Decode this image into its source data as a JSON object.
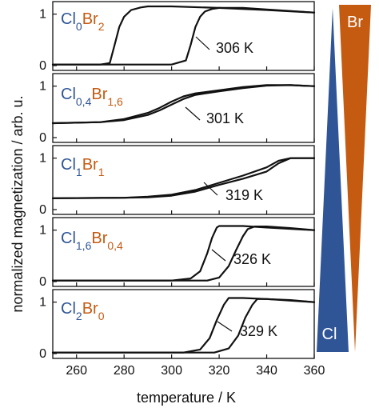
{
  "colors": {
    "cl": "#2f5597",
    "br": "#c55a11",
    "line": "#111111"
  },
  "chart_data": {
    "type": "line",
    "xlabel": "temperature / K",
    "ylabel": "normalized magnetization / arb. u.",
    "xlim": [
      250,
      360
    ],
    "xticks": [
      "260",
      "280",
      "300",
      "320",
      "340",
      "360"
    ],
    "ylim": [
      0,
      1.15
    ],
    "yticks": [
      "0",
      "1"
    ],
    "grid": false,
    "panels": [
      {
        "label": [
          {
            "text": "Cl",
            "el": "cl"
          },
          {
            "text": "0",
            "el": "cl",
            "sub": true
          },
          {
            "text": "Br",
            "el": "br"
          },
          {
            "text": "2",
            "el": "br",
            "sub": true
          }
        ],
        "annotation": "306 K",
        "cooling": {
          "x": [
            250,
            270,
            274,
            276,
            278,
            280,
            283,
            287,
            290,
            300,
            320,
            340,
            360
          ],
          "y": [
            0.02,
            0.02,
            0.05,
            0.4,
            0.75,
            0.95,
            1.08,
            1.13,
            1.15,
            1.15,
            1.12,
            1.08,
            1.03
          ]
        },
        "heating": {
          "x": [
            250,
            300,
            306,
            308,
            310,
            312,
            314,
            317,
            320,
            330,
            340,
            360
          ],
          "y": [
            0.02,
            0.02,
            0.1,
            0.4,
            0.75,
            0.95,
            1.05,
            1.1,
            1.12,
            1.12,
            1.09,
            1.03
          ]
        }
      },
      {
        "label": [
          {
            "text": "Cl",
            "el": "cl"
          },
          {
            "text": "0,4",
            "el": "cl",
            "sub": true
          },
          {
            "text": "Br",
            "el": "br"
          },
          {
            "text": "1,6",
            "el": "br",
            "sub": true
          }
        ],
        "annotation": "301 K",
        "cooling": {
          "x": [
            250,
            270,
            280,
            290,
            295,
            300,
            305,
            310,
            320,
            330,
            340,
            350,
            360
          ],
          "y": [
            0.28,
            0.3,
            0.36,
            0.48,
            0.58,
            0.7,
            0.8,
            0.86,
            0.92,
            0.98,
            1.02,
            1.02,
            1.0
          ]
        },
        "heating": {
          "x": [
            250,
            270,
            280,
            290,
            295,
            300,
            305,
            310,
            320,
            330,
            340,
            350,
            360
          ],
          "y": [
            0.28,
            0.3,
            0.34,
            0.44,
            0.53,
            0.64,
            0.75,
            0.83,
            0.9,
            0.96,
            1.01,
            1.02,
            1.0
          ]
        }
      },
      {
        "label": [
          {
            "text": "Cl",
            "el": "cl"
          },
          {
            "text": "1",
            "el": "cl",
            "sub": true
          },
          {
            "text": "Br",
            "el": "br"
          },
          {
            "text": "1",
            "el": "br",
            "sub": true
          }
        ],
        "annotation": "319 K",
        "cooling": {
          "x": [
            250,
            280,
            290,
            300,
            310,
            320,
            330,
            340,
            345,
            350,
            360
          ],
          "y": [
            0.22,
            0.23,
            0.25,
            0.29,
            0.38,
            0.52,
            0.66,
            0.82,
            0.95,
            1.0,
            1.0
          ]
        },
        "heating": {
          "x": [
            250,
            280,
            290,
            300,
            310,
            320,
            330,
            340,
            345,
            350,
            360
          ],
          "y": [
            0.22,
            0.23,
            0.24,
            0.27,
            0.35,
            0.48,
            0.6,
            0.74,
            0.9,
            1.0,
            1.0
          ]
        }
      },
      {
        "label": [
          {
            "text": "Cl",
            "el": "cl"
          },
          {
            "text": "1,6",
            "el": "cl",
            "sub": true
          },
          {
            "text": "Br",
            "el": "br"
          },
          {
            "text": "0,4",
            "el": "br",
            "sub": true
          }
        ],
        "annotation": "326 K",
        "cooling": {
          "x": [
            250,
            300,
            308,
            312,
            315,
            317,
            319,
            320,
            330,
            340,
            360
          ],
          "y": [
            0.02,
            0.02,
            0.06,
            0.2,
            0.55,
            0.85,
            1.05,
            1.08,
            1.08,
            1.05,
            1.0
          ]
        },
        "heating": {
          "x": [
            250,
            315,
            320,
            324,
            327,
            330,
            332,
            335,
            340,
            350,
            360
          ],
          "y": [
            0.02,
            0.02,
            0.08,
            0.3,
            0.6,
            0.88,
            1.02,
            1.07,
            1.07,
            1.04,
            1.0
          ]
        }
      },
      {
        "label": [
          {
            "text": "Cl",
            "el": "cl"
          },
          {
            "text": "2",
            "el": "cl",
            "sub": true
          },
          {
            "text": "Br",
            "el": "br"
          },
          {
            "text": "0",
            "el": "br",
            "sub": true
          }
        ],
        "annotation": "329 K",
        "cooling": {
          "x": [
            250,
            305,
            312,
            316,
            319,
            322,
            324,
            330,
            340,
            360
          ],
          "y": [
            0.02,
            0.02,
            0.08,
            0.3,
            0.65,
            0.95,
            1.08,
            1.08,
            1.06,
            1.0
          ]
        },
        "heating": {
          "x": [
            250,
            318,
            324,
            328,
            331,
            334,
            336,
            340,
            350,
            360
          ],
          "y": [
            0.02,
            0.02,
            0.1,
            0.35,
            0.7,
            0.95,
            1.06,
            1.06,
            1.04,
            1.0
          ]
        }
      }
    ],
    "composition_bar": {
      "left_label": "Cl",
      "right_label": "Br"
    }
  }
}
